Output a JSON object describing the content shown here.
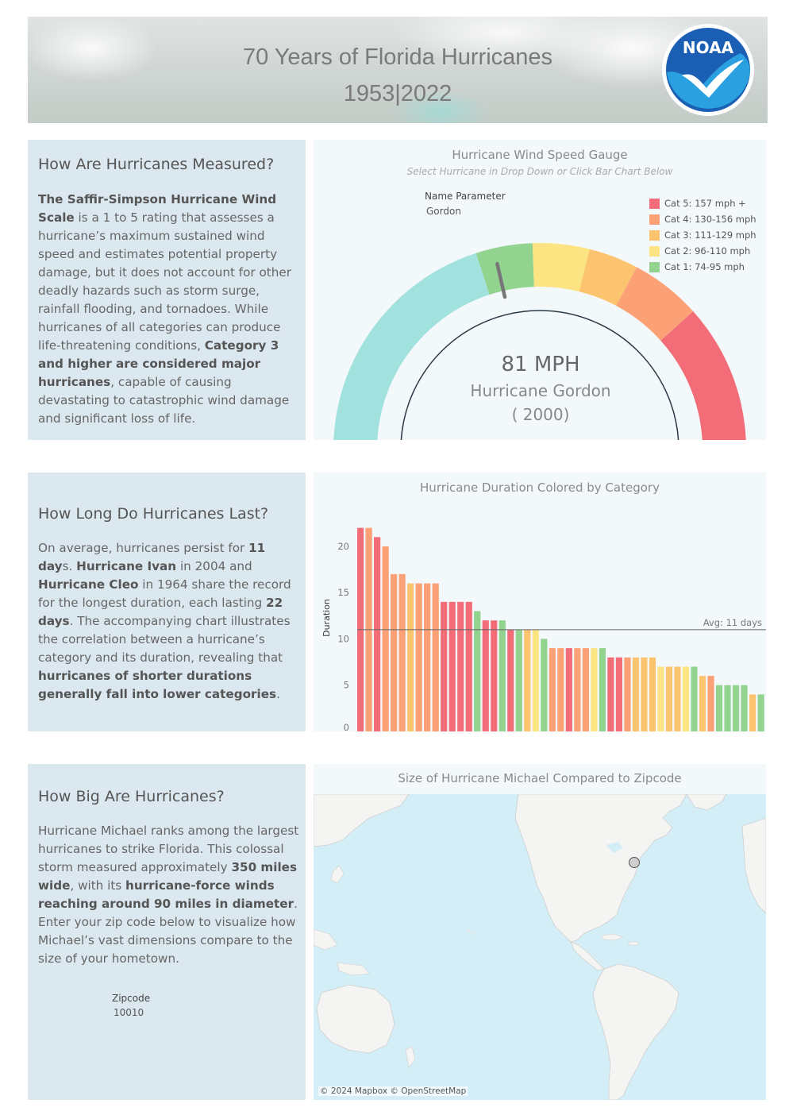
{
  "header": {
    "title_line1": "70 Years of Florida Hurricanes",
    "title_line2": "1953|2022",
    "logo_text": "NOAA"
  },
  "measured": {
    "heading": "How Are Hurricanes Measured?",
    "p_bold1": "The Saffir-Simpson Hurricane Wind Scale",
    "p_text1": " is a 1 to 5 rating that assesses a hurricane’s maximum sustained wind speed and estimates potential property damage, but it does not account for other deadly hazards such as storm surge, rainfall flooding, and tornadoes. While hurricanes of all categories can produce life-threatening conditions, ",
    "p_bold2": "Category 3 and higher are considered major hurricanes",
    "p_text2": ", capable of causing devastating to catastrophic wind damage and significant loss of life."
  },
  "gauge": {
    "title": "Hurricane Wind Speed Gauge",
    "subtitle": "Select Hurricane in Drop Down or Click Bar Chart Below",
    "param_label": "Name Parameter",
    "param_value": "Gordon",
    "speed": "81 MPH",
    "name": "Hurricane Gordon",
    "year": "( 2000)",
    "speed_value": 81,
    "legend": [
      {
        "label": "Cat 5: 157 mph +",
        "color": "#f26d78"
      },
      {
        "label": "Cat 4: 130-156 mph",
        "color": "#fba175"
      },
      {
        "label": "Cat 3: 111-129 mph",
        "color": "#fdc46f"
      },
      {
        "label": "Cat 2: 96-110 mph",
        "color": "#fde482"
      },
      {
        "label": "Cat 1: 74-95 mph",
        "color": "#93d390"
      }
    ],
    "colors": {
      "tropical": "#a1e1de",
      "cat1": "#93d390",
      "cat2": "#fde482",
      "cat3": "#fdc46f",
      "cat4": "#fba175",
      "cat5": "#f26d78"
    }
  },
  "duration": {
    "heading": "How Long Do Hurricanes Last?",
    "t1": "On average, hurricanes persist for ",
    "b1": "11 day",
    "t2": "s. ",
    "b2": "Hurricane Ivan",
    "t3": " in 2004 and ",
    "b3": "Hurricane Cleo",
    "t4": " in 1964 share the record for the longest duration, each lasting ",
    "b4": "22 days",
    "t5": ". The accompanying chart illustrates the correlation between a hurricane’s category and its duration, revealing that ",
    "b5": "hurricanes of shorter durations generally fall into lower categories",
    "t6": "."
  },
  "chart_data": {
    "type": "bar",
    "title": "Hurricane Duration Colored by Category",
    "ylabel": "Duration",
    "ylim": [
      0,
      23
    ],
    "yticks": [
      0,
      5,
      10,
      15,
      20
    ],
    "avg_value": 11,
    "avg_label": "Avg: 11 days",
    "values": [
      22,
      22,
      21,
      20,
      17,
      17,
      16,
      16,
      16,
      16,
      14,
      14,
      14,
      14,
      13,
      12,
      12,
      12,
      11,
      11,
      11,
      11,
      10,
      9,
      9,
      9,
      9,
      9,
      9,
      9,
      8,
      8,
      8,
      8,
      8,
      8,
      7,
      7,
      7,
      7,
      7,
      6,
      6,
      5,
      5,
      5,
      5,
      4,
      4
    ],
    "categories": [
      5,
      4,
      5,
      4,
      4,
      4,
      3,
      4,
      4,
      4,
      5,
      5,
      5,
      5,
      1,
      5,
      5,
      1,
      5,
      1,
      3,
      2,
      1,
      4,
      4,
      5,
      4,
      4,
      2,
      1,
      5,
      5,
      4,
      3,
      3,
      3,
      2,
      3,
      3,
      2,
      1,
      3,
      4,
      1,
      1,
      1,
      1,
      3,
      1
    ]
  },
  "size": {
    "heading": "How Big Are Hurricanes?",
    "t1": "Hurricane Michael ranks among the largest hurricanes to strike Florida. This colossal storm measured approximately ",
    "b1": "350 miles wide",
    "t2": ", with its ",
    "b2": "hurricane-force winds reaching around 90 miles in diameter",
    "t3": ". Enter your zip code below to visualize how Michael’s vast dimensions compare to the size of your hometown.",
    "zip_label": "Zipcode",
    "zip_value": "10010"
  },
  "map": {
    "title": "Size of Hurricane Michael Compared to Zipcode",
    "attribution": "© 2024 Mapbox © OpenStreetMap"
  }
}
